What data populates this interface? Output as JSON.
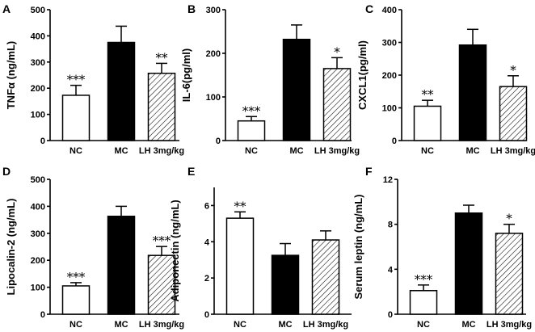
{
  "chart_data": [
    {
      "type": "bar",
      "panel": "A",
      "ylabel": "TNFα (ng/mL)",
      "ylim": [
        0,
        500
      ],
      "yticks": [
        0,
        100,
        200,
        300,
        400,
        500
      ],
      "categories": [
        "NC",
        "MC",
        "LH 3mg/kg"
      ],
      "values": [
        173,
        375,
        257
      ],
      "errors": [
        38,
        62,
        38
      ],
      "significance": [
        "***",
        "",
        "**"
      ],
      "fills": [
        "white",
        "black",
        "hatch"
      ]
    },
    {
      "type": "bar",
      "panel": "B",
      "ylabel": "IL-6(pg/ml)",
      "ylim": [
        0,
        300
      ],
      "yticks": [
        0,
        100,
        200,
        300
      ],
      "categories": [
        "NC",
        "MC",
        "LH 3mg/kg"
      ],
      "values": [
        45,
        232,
        165
      ],
      "errors": [
        10,
        33,
        25
      ],
      "significance": [
        "***",
        "",
        "*"
      ],
      "fills": [
        "white",
        "black",
        "hatch"
      ]
    },
    {
      "type": "bar",
      "panel": "C",
      "ylabel": "CXCL1(pg/ml)",
      "ylim": [
        0,
        400
      ],
      "yticks": [
        0,
        100,
        200,
        300,
        400
      ],
      "categories": [
        "NC",
        "MC",
        "LH 3mg/kg"
      ],
      "values": [
        105,
        292,
        165
      ],
      "errors": [
        18,
        48,
        33
      ],
      "significance": [
        "**",
        "",
        "*"
      ],
      "fills": [
        "white",
        "black",
        "hatch"
      ]
    },
    {
      "type": "bar",
      "panel": "D",
      "ylabel": "Lipocalin-2 (ng/mL)",
      "ylim": [
        0,
        500
      ],
      "yticks": [
        0,
        100,
        200,
        300,
        400,
        500
      ],
      "categories": [
        "NC",
        "MC",
        "LH 3mg/kg"
      ],
      "values": [
        105,
        363,
        218
      ],
      "errors": [
        12,
        37,
        33
      ],
      "significance": [
        "***",
        "",
        "***"
      ],
      "fills": [
        "white",
        "black",
        "hatch"
      ]
    },
    {
      "type": "bar",
      "panel": "E",
      "ylabel": "Adiponectin (ng/mL)",
      "ylim": [
        0,
        7
      ],
      "yticks": [
        0,
        2,
        4,
        6
      ],
      "categories": [
        "NC",
        "MC",
        "LH 3mg/kg"
      ],
      "values": [
        5.3,
        3.25,
        4.1
      ],
      "errors": [
        0.35,
        0.65,
        0.5
      ],
      "significance": [
        "**",
        "",
        ""
      ],
      "fills": [
        "white",
        "black",
        "hatch"
      ]
    },
    {
      "type": "bar",
      "panel": "F",
      "ylabel": "Serum leptin (ng/mL)",
      "ylim": [
        0,
        12
      ],
      "yticks": [
        0,
        4,
        8,
        12
      ],
      "categories": [
        "NC",
        "MC",
        "LH 3mg/kg"
      ],
      "values": [
        2.1,
        9.0,
        7.2
      ],
      "errors": [
        0.5,
        0.7,
        0.8
      ],
      "significance": [
        "***",
        "",
        "*"
      ],
      "fills": [
        "white",
        "black",
        "hatch"
      ]
    }
  ]
}
